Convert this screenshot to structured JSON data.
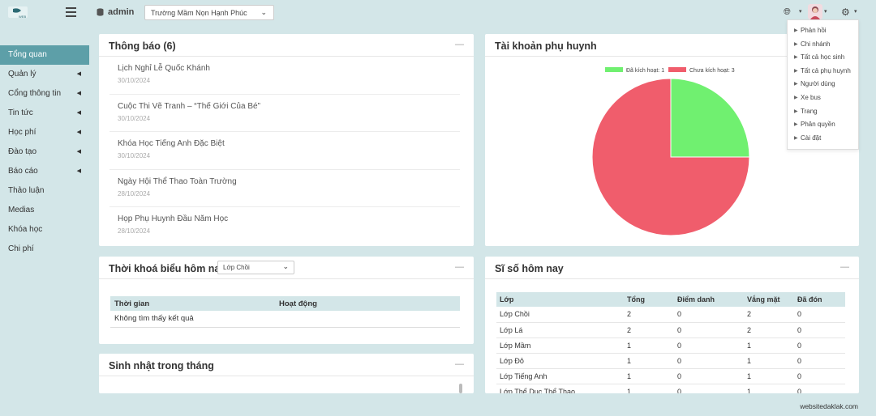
{
  "header": {
    "user": "admin",
    "school": "Trường Mầm Nọn Hạnh Phúc",
    "icons": [
      "logo",
      "menu-icon",
      "database-icon",
      "globe-icon",
      "avatar",
      "gear-icon"
    ]
  },
  "sidebar": {
    "items": [
      {
        "label": "Tổng quan",
        "active": true,
        "has_sub": false
      },
      {
        "label": "Quản lý",
        "active": false,
        "has_sub": true
      },
      {
        "label": "Cổng thông tin",
        "active": false,
        "has_sub": true
      },
      {
        "label": "Tin tức",
        "active": false,
        "has_sub": true
      },
      {
        "label": "Học phí",
        "active": false,
        "has_sub": true
      },
      {
        "label": "Đào tạo",
        "active": false,
        "has_sub": true
      },
      {
        "label": "Báo cáo",
        "active": false,
        "has_sub": true
      },
      {
        "label": "Thảo luận",
        "active": false,
        "has_sub": false
      },
      {
        "label": "Medias",
        "active": false,
        "has_sub": false
      },
      {
        "label": "Khóa học",
        "active": false,
        "has_sub": false
      },
      {
        "label": "Chi phí",
        "active": false,
        "has_sub": false
      }
    ]
  },
  "notices": {
    "title": "Thông báo (6)",
    "items": [
      {
        "title": "Lịch Nghỉ Lễ Quốc Khánh",
        "date": "30/10/2024"
      },
      {
        "title": "Cuộc Thi Vẽ Tranh – “Thế Giới Của Bé”",
        "date": "30/10/2024"
      },
      {
        "title": "Khóa Học Tiếng Anh Đặc Biệt",
        "date": "30/10/2024"
      },
      {
        "title": "Ngày Hội Thể Thao Toàn Trường",
        "date": "28/10/2024"
      },
      {
        "title": "Họp Phụ Huynh Đầu Năm Học",
        "date": "28/10/2024"
      }
    ]
  },
  "timetable": {
    "title": "Thời khoá biểu hôm nay",
    "class_selected": "Lớp Chồi",
    "headers": [
      "Thời gian",
      "Hoạt động"
    ],
    "empty": "Không tìm thấy kết quả"
  },
  "birthdays": {
    "title": "Sinh nhật trong tháng"
  },
  "accounts": {
    "title": "Tài khoản phụ huynh"
  },
  "attendance": {
    "title": "Sĩ số hôm nay",
    "headers": [
      "Lớp",
      "Tổng",
      "Điểm danh",
      "Vắng mặt",
      "Đã đón"
    ],
    "rows": [
      [
        "Lớp Chồi",
        "2",
        "0",
        "2",
        "0"
      ],
      [
        "Lớp Lá",
        "2",
        "0",
        "2",
        "0"
      ],
      [
        "Lớp Mầm",
        "1",
        "0",
        "1",
        "0"
      ],
      [
        "Lớp Đỏ",
        "1",
        "0",
        "1",
        "0"
      ],
      [
        "Lớp Tiếng Anh",
        "1",
        "0",
        "1",
        "0"
      ],
      [
        "Lớp Thể Dục Thể Thao",
        "1",
        "0",
        "1",
        "0"
      ]
    ]
  },
  "settings_menu": {
    "items": [
      "Phản hồi",
      "Chi nhánh",
      "Tất cả học sinh",
      "Tất cả phụ huynh",
      "Người dùng",
      "Xe bus",
      "Trang",
      "Phân quyền",
      "Cài đặt"
    ]
  },
  "footer": {
    "text": "websitedaklak.com"
  },
  "chart_data": {
    "type": "pie",
    "categories": [
      "Đã kích hoạt",
      "Chưa kích hoạt"
    ],
    "values": [
      1,
      3
    ],
    "legend": [
      "Đã kích hoạt: 1",
      "Chưa kích hoạt: 3"
    ],
    "colors": [
      "#70f070",
      "#f05d6c"
    ],
    "legend_position": "top"
  }
}
